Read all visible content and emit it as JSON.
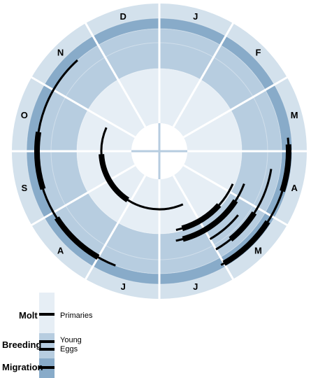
{
  "colors": {
    "ring_outer": "#d3e1ec",
    "ring_migration": "#88abc9",
    "ring_breeding": "#b7cde0",
    "ring_inner": "#e6eef5",
    "hub": "#ffffff",
    "divider": "#ffffff",
    "track": "#000000"
  },
  "months": [
    "J",
    "F",
    "M",
    "A",
    "M",
    "J",
    "J",
    "A",
    "S",
    "O",
    "N",
    "D"
  ],
  "month_levels": [
    {
      "month": "J",
      "level": 3
    },
    {
      "month": "F",
      "level": 3
    },
    {
      "month": "M",
      "level": 4
    },
    {
      "month": "A",
      "level": 3
    },
    {
      "month": "M",
      "level": 4
    },
    {
      "month": "J",
      "level": 3
    },
    {
      "month": "J",
      "level": 3
    },
    {
      "month": "A",
      "level": 3
    },
    {
      "month": "S",
      "level": 4
    },
    {
      "month": "O",
      "level": 4
    },
    {
      "month": "N",
      "level": 4
    },
    {
      "month": "D",
      "level": 3
    }
  ],
  "tracks": [
    {
      "id": "migration-spring",
      "r": 185,
      "start": 2.8,
      "end": 5.05,
      "thick": [
        [
          2.9,
          3.6
        ],
        [
          4.1,
          5.0
        ]
      ]
    },
    {
      "id": "migration-spring-inner",
      "r": 162,
      "start": 3.3,
      "end": 5.0,
      "thick": [
        [
          4.1,
          4.7
        ]
      ]
    },
    {
      "id": "migration-autumn",
      "r": 175,
      "start": 6.7,
      "end": 10.6,
      "thick": [
        [
          7.0,
          7.9
        ],
        [
          8.4,
          9.3
        ]
      ]
    },
    {
      "id": "breeding-young",
      "r": 130,
      "start": 3.7,
      "end": 5.65,
      "thick": [
        [
          4.1,
          5.5
        ]
      ]
    },
    {
      "id": "breeding-eggs",
      "r": 115,
      "start": 3.8,
      "end": 5.6,
      "thick": [
        [
          4.4,
          5.45
        ]
      ]
    },
    {
      "id": "breeding-extra",
      "r": 145,
      "start": 4.3,
      "end": 5.0,
      "thick": []
    },
    {
      "id": "molt-primaries",
      "r": 83,
      "start": 5.2,
      "end": 9.8,
      "thick": [
        [
          7.1,
          8.9
        ]
      ]
    }
  ],
  "legend": {
    "rows": [
      {
        "label": "Molt",
        "item": "Primaries"
      },
      {
        "label": "Breeding",
        "item": "Young",
        "item2": "Eggs"
      },
      {
        "label": "Migration",
        "item": ""
      }
    ]
  }
}
